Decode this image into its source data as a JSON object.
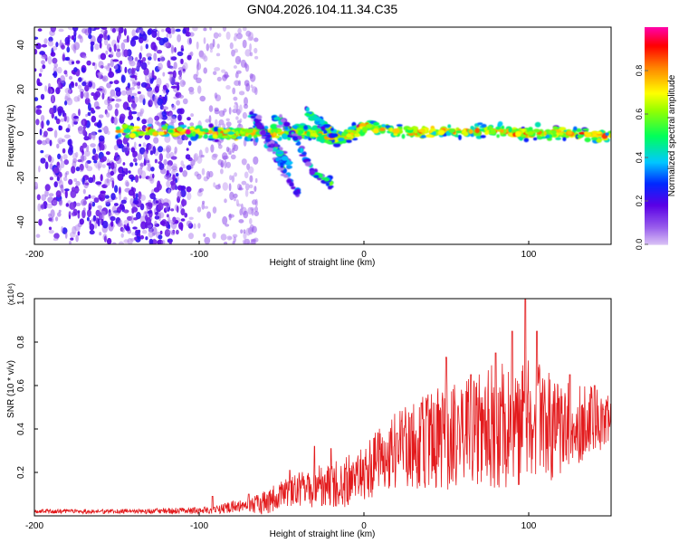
{
  "title": "GN04.2026.104.11.34.C35",
  "chart_data": [
    {
      "type": "heatmap",
      "title": "GN04.2026.104.11.34.C35",
      "xlabel": "Height of straight line (km)",
      "ylabel": "Frequency (Hz)",
      "xlim": [
        -200,
        150
      ],
      "ylim": [
        -50,
        48
      ],
      "xticks": [
        -200,
        -100,
        0,
        100
      ],
      "yticks": [
        -40,
        -20,
        0,
        20,
        40
      ],
      "grid": false,
      "colorbar": {
        "label": "Normalized spectral amplitude",
        "range": [
          0,
          1
        ],
        "ticks": [
          "0.0",
          "0.2",
          "0.4",
          "0.6",
          "0.8"
        ]
      },
      "features": [
        {
          "name": "noise_region",
          "x_range": [
            -200,
            -65
          ],
          "freq_range": [
            -50,
            48
          ],
          "amplitude": 0.12
        },
        {
          "name": "main_track",
          "points": [
            [
              -150,
              1
            ],
            [
              -110,
              1
            ],
            [
              -90,
              0
            ],
            [
              -75,
              0
            ],
            [
              -60,
              0
            ],
            [
              -40,
              1
            ],
            [
              -30,
              0
            ],
            [
              -20,
              -2
            ],
            [
              -10,
              -1
            ],
            [
              0,
              3
            ],
            [
              20,
              1
            ],
            [
              50,
              1
            ],
            [
              80,
              1
            ],
            [
              100,
              0
            ],
            [
              120,
              0
            ],
            [
              150,
              -1
            ]
          ],
          "amplitude": 0.72
        },
        {
          "name": "branch_1",
          "points": [
            [
              -70,
              9
            ],
            [
              -55,
              -5
            ],
            [
              -50,
              -10
            ],
            [
              -45,
              -15
            ]
          ],
          "amplitude": 0.42
        },
        {
          "name": "branch_2",
          "points": [
            [
              -65,
              6
            ],
            [
              -52,
              -12
            ],
            [
              -40,
              -27
            ]
          ],
          "amplitude": 0.32
        },
        {
          "name": "branch_3",
          "points": [
            [
              -55,
              8
            ],
            [
              -45,
              2
            ],
            [
              -30,
              -18
            ],
            [
              -20,
              -22
            ]
          ],
          "amplitude": 0.38
        },
        {
          "name": "branch_4",
          "points": [
            [
              -35,
              10
            ],
            [
              -25,
              4
            ],
            [
              -18,
              0
            ]
          ],
          "amplitude": 0.5
        }
      ]
    },
    {
      "type": "line",
      "xlabel": "Height of straight line (km)",
      "ylabel": "SNR (10 * v/v)",
      "scale_label": "(x10⁴)",
      "xlim": [
        -200,
        150
      ],
      "ylim": [
        0,
        1.0
      ],
      "xticks": [
        -200,
        -100,
        0,
        100
      ],
      "yticks": [
        0.2,
        0.4,
        0.6,
        0.8,
        1.0
      ],
      "ytick_labels": [
        "0.2",
        "0.4",
        "0.6",
        "0.8",
        "1.0"
      ],
      "series": [
        {
          "name": "SNR",
          "color": "#e31a1c",
          "envelope_x": [
            -200,
            -150,
            -100,
            -90,
            -80,
            -70,
            -60,
            -50,
            -40,
            -30,
            -20,
            -10,
            0,
            10,
            20,
            30,
            40,
            50,
            60,
            70,
            80,
            90,
            100,
            110,
            120,
            130,
            140,
            150
          ],
          "envelope_mean": [
            0.02,
            0.02,
            0.025,
            0.03,
            0.04,
            0.05,
            0.06,
            0.1,
            0.12,
            0.13,
            0.14,
            0.16,
            0.2,
            0.26,
            0.3,
            0.32,
            0.35,
            0.36,
            0.38,
            0.4,
            0.42,
            0.42,
            0.43,
            0.41,
            0.4,
            0.42,
            0.45,
            0.42
          ],
          "envelope_amp": [
            0.01,
            0.01,
            0.015,
            0.02,
            0.03,
            0.03,
            0.06,
            0.06,
            0.08,
            0.1,
            0.1,
            0.12,
            0.14,
            0.15,
            0.18,
            0.2,
            0.23,
            0.25,
            0.24,
            0.27,
            0.3,
            0.3,
            0.3,
            0.27,
            0.22,
            0.18,
            0.15,
            0.13
          ],
          "peaks": [
            [
              -92,
              0.09
            ],
            [
              -70,
              0.1
            ],
            [
              -45,
              0.21
            ],
            [
              -30,
              0.32
            ],
            [
              -20,
              0.31
            ],
            [
              20,
              0.38
            ],
            [
              35,
              0.52
            ],
            [
              50,
              0.73
            ],
            [
              65,
              0.65
            ],
            [
              80,
              0.75
            ],
            [
              90,
              0.85
            ],
            [
              98,
              1.0
            ],
            [
              105,
              0.85
            ],
            [
              125,
              0.65
            ],
            [
              140,
              0.6
            ]
          ]
        }
      ]
    }
  ]
}
